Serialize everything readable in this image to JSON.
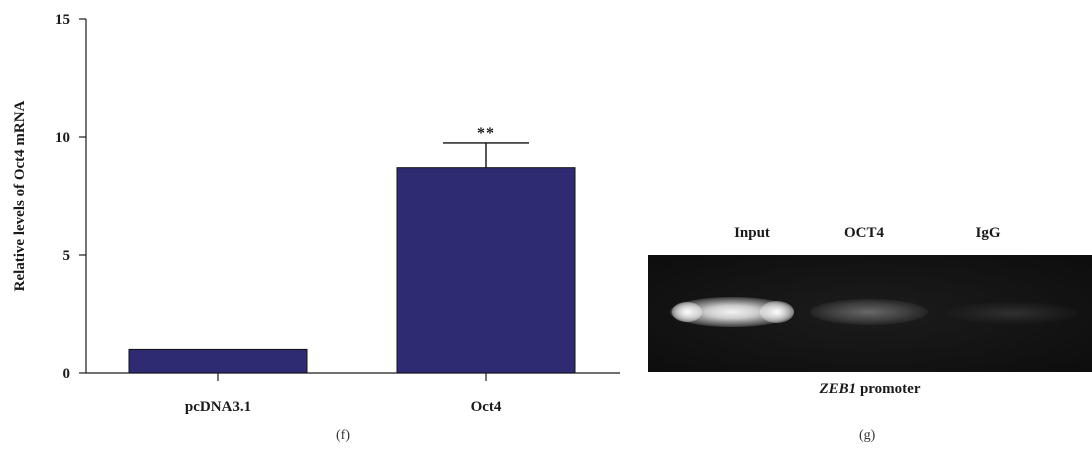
{
  "chart_data": {
    "type": "bar",
    "categories": [
      "pcDNA3.1",
      "Oct4"
    ],
    "values": [
      1.0,
      8.7
    ],
    "error_upper": [
      0.0,
      1.05
    ],
    "ylabel": "Relative levels of Oct4 mRNA",
    "xlabel": "",
    "ylim": [
      0,
      15
    ],
    "yticks": [
      0,
      5,
      10,
      15
    ],
    "bar_color": "#2e2b73",
    "annotations": [
      {
        "category": "Oct4",
        "text": "**"
      }
    ],
    "grid": false,
    "panel_label": "(f)"
  },
  "gel": {
    "lanes": [
      "Input",
      "OCT4",
      "IgG"
    ],
    "caption_gene": "ZEB1",
    "caption_rest": " promoter",
    "panel_label": "(g)"
  }
}
